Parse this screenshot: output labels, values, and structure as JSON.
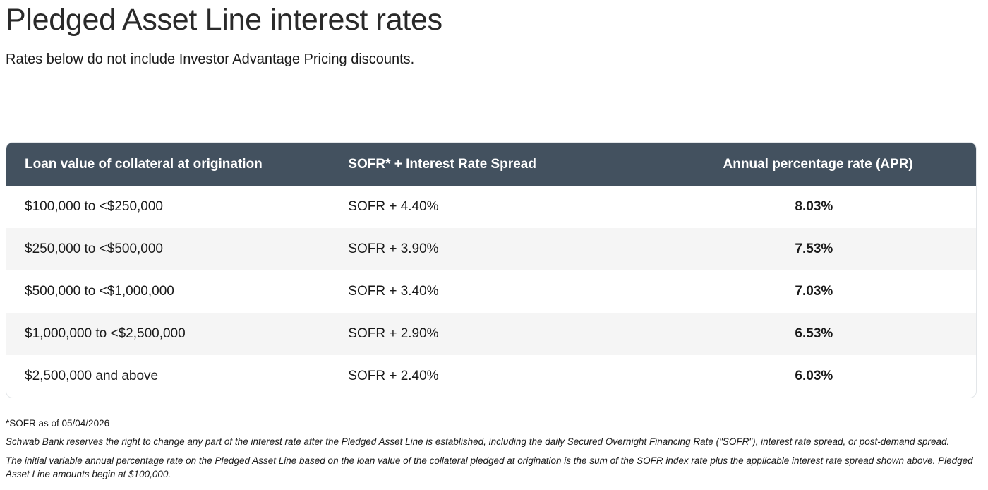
{
  "header": {
    "title": "Pledged Asset Line interest rates",
    "subtitle": "Rates below do not include Investor Advantage Pricing discounts."
  },
  "table": {
    "columns": [
      "Loan value of collateral at origination",
      "SOFR* + Interest Rate Spread",
      "Annual percentage rate (APR)"
    ],
    "rows": [
      {
        "collateral": "$100,000 to <$250,000",
        "spread": "SOFR + 4.40%",
        "apr": "8.03%"
      },
      {
        "collateral": "$250,000 to <$500,000",
        "spread": "SOFR + 3.90%",
        "apr": "7.53%"
      },
      {
        "collateral": "$500,000 to <$1,000,000",
        "spread": "SOFR + 3.40%",
        "apr": "7.03%"
      },
      {
        "collateral": "$1,000,000 to <$2,500,000",
        "spread": "SOFR + 2.90%",
        "apr": "6.53%"
      },
      {
        "collateral": "$2,500,000 and above",
        "spread": "SOFR + 2.40%",
        "apr": "6.03%"
      }
    ],
    "header_color": "#43515f",
    "alt_row_color": "#f5f5f5"
  },
  "footnotes": {
    "sofr_date": "*SOFR as of 05/04/2026",
    "disclaimer_1": "Schwab Bank reserves the right to change any part of the interest rate after the Pledged Asset Line is established, including the daily Secured Overnight Financing Rate (\"SOFR\"), interest rate spread, or post-demand spread.",
    "disclaimer_2": "The initial variable annual percentage rate on the Pledged Asset Line based on the loan value of the collateral pledged at origination is the sum of the SOFR index rate plus the applicable interest rate spread shown above. Pledged Asset Line amounts begin at $100,000."
  }
}
